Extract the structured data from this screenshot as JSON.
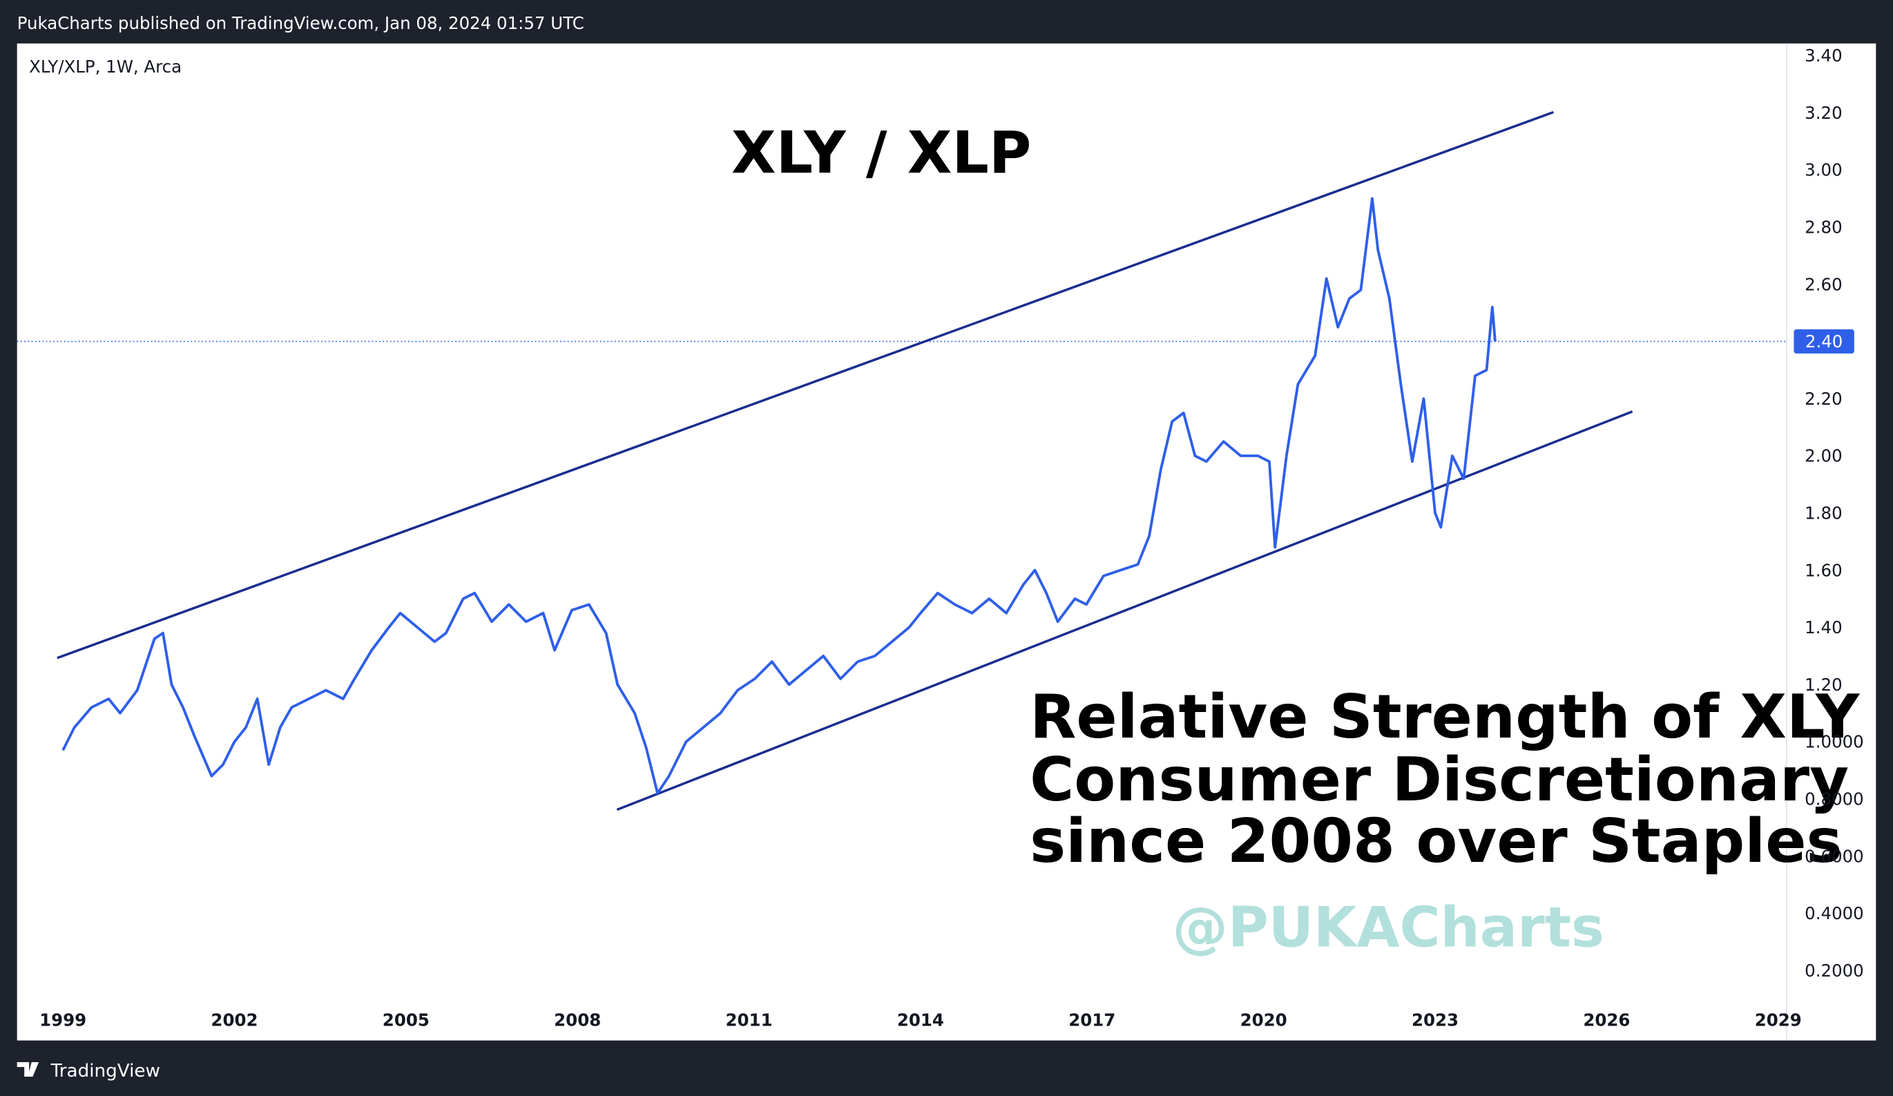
{
  "header": "PukaCharts published on TradingView.com, Jan 08, 2024 01:57 UTC",
  "footer": "TradingView",
  "chart_data": {
    "type": "line",
    "symbol": "XLY/XLP, 1W, Arca",
    "title": "XLY / XLP",
    "annotation": [
      "Relative Strength of XLY",
      "Consumer Discretionary",
      "since 2008 over Staples"
    ],
    "watermark": "@PUKACharts",
    "series": [
      {
        "name": "XLY/XLP",
        "color": "#2f5fe8",
        "x": [
          1999.0,
          1999.2,
          1999.5,
          1999.8,
          2000.0,
          2000.3,
          2000.6,
          2000.75,
          2000.9,
          2001.1,
          2001.3,
          2001.6,
          2001.8,
          2002.0,
          2002.2,
          2002.4,
          2002.6,
          2002.8,
          2003.0,
          2003.3,
          2003.6,
          2003.9,
          2004.1,
          2004.4,
          2004.7,
          2004.9,
          2005.2,
          2005.5,
          2005.7,
          2006.0,
          2006.2,
          2006.5,
          2006.8,
          2007.1,
          2007.4,
          2007.6,
          2007.9,
          2008.2,
          2008.5,
          2008.7,
          2009.0,
          2009.2,
          2009.4,
          2009.6,
          2009.9,
          2010.2,
          2010.5,
          2010.8,
          2011.1,
          2011.4,
          2011.7,
          2012.0,
          2012.3,
          2012.6,
          2012.9,
          2013.2,
          2013.5,
          2013.8,
          2014.0,
          2014.3,
          2014.6,
          2014.9,
          2015.2,
          2015.5,
          2015.8,
          2016.0,
          2016.2,
          2016.4,
          2016.7,
          2016.9,
          2017.2,
          2017.5,
          2017.8,
          2018.0,
          2018.2,
          2018.4,
          2018.6,
          2018.8,
          2019.0,
          2019.3,
          2019.6,
          2019.9,
          2020.1,
          2020.2,
          2020.4,
          2020.6,
          2020.9,
          2021.1,
          2021.3,
          2021.5,
          2021.7,
          2021.9,
          2022.0,
          2022.2,
          2022.4,
          2022.6,
          2022.8,
          2023.0,
          2023.1,
          2023.3,
          2023.5,
          2023.7,
          2023.9,
          2024.0,
          2024.05
        ],
        "values": [
          0.97,
          1.05,
          1.12,
          1.15,
          1.1,
          1.18,
          1.36,
          1.38,
          1.2,
          1.12,
          1.02,
          0.88,
          0.92,
          1.0,
          1.05,
          1.15,
          0.92,
          1.05,
          1.12,
          1.15,
          1.18,
          1.15,
          1.22,
          1.32,
          1.4,
          1.45,
          1.4,
          1.35,
          1.38,
          1.5,
          1.52,
          1.42,
          1.48,
          1.42,
          1.45,
          1.32,
          1.46,
          1.48,
          1.38,
          1.2,
          1.1,
          0.98,
          0.82,
          0.88,
          1.0,
          1.05,
          1.1,
          1.18,
          1.22,
          1.28,
          1.2,
          1.25,
          1.3,
          1.22,
          1.28,
          1.3,
          1.35,
          1.4,
          1.45,
          1.52,
          1.48,
          1.45,
          1.5,
          1.45,
          1.55,
          1.6,
          1.52,
          1.42,
          1.5,
          1.48,
          1.58,
          1.6,
          1.62,
          1.72,
          1.95,
          2.12,
          2.15,
          2.0,
          1.98,
          2.05,
          2.0,
          2.0,
          1.98,
          1.68,
          2.0,
          2.25,
          2.35,
          2.62,
          2.45,
          2.55,
          2.58,
          2.9,
          2.72,
          2.55,
          2.25,
          1.98,
          2.2,
          1.8,
          1.75,
          2.0,
          1.92,
          2.28,
          2.3,
          2.52,
          2.4
        ]
      }
    ],
    "trend_lines": [
      {
        "color": "#1a2d8f",
        "x": [
          1998.9,
          2025.07
        ],
        "y": [
          1.293,
          3.202
        ]
      },
      {
        "color": "#1a2d8f",
        "x": [
          2008.69,
          2026.45
        ],
        "y": [
          0.762,
          2.155
        ]
      }
    ],
    "last_price": {
      "value": 2.4,
      "label": "2.40"
    },
    "xlim": [
      1999,
      2029
    ],
    "xticks": [
      1999,
      2002,
      2005,
      2008,
      2011,
      2014,
      2017,
      2020,
      2023,
      2026,
      2029
    ],
    "ylim": [
      0.2,
      3.4
    ],
    "yticks": [
      {
        "value": 0.2,
        "label": "0.2000"
      },
      {
        "value": 0.4,
        "label": "0.4000"
      },
      {
        "value": 0.6,
        "label": "0.6000"
      },
      {
        "value": 0.8,
        "label": "0.8000"
      },
      {
        "value": 1.0,
        "label": "1.0000"
      },
      {
        "value": 1.2,
        "label": "1.20"
      },
      {
        "value": 1.4,
        "label": "1.40"
      },
      {
        "value": 1.6,
        "label": "1.60"
      },
      {
        "value": 1.8,
        "label": "1.80"
      },
      {
        "value": 2.0,
        "label": "2.00"
      },
      {
        "value": 2.2,
        "label": "2.20"
      },
      {
        "value": 2.4,
        "label": "2.40"
      },
      {
        "value": 2.6,
        "label": "2.60"
      },
      {
        "value": 2.8,
        "label": "2.80"
      },
      {
        "value": 3.0,
        "label": "3.00"
      },
      {
        "value": 3.2,
        "label": "3.20"
      },
      {
        "value": 3.4,
        "label": "3.40"
      }
    ],
    "grid": false
  }
}
